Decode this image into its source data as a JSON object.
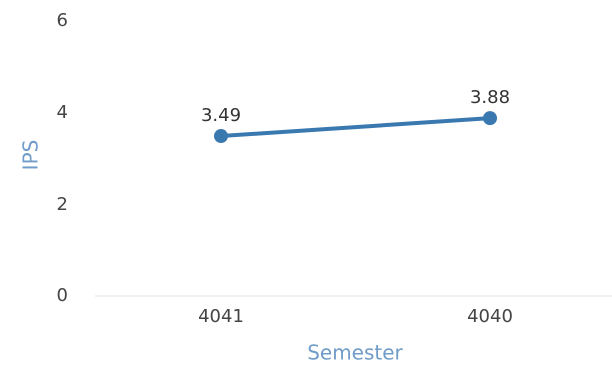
{
  "chart_data": {
    "type": "line",
    "categories": [
      "4041",
      "4040"
    ],
    "series": [
      {
        "values": [
          3.49,
          3.88
        ],
        "labels": [
          "3.49",
          "3.88"
        ]
      }
    ],
    "xlabel": "Semester",
    "ylabel": "IPS",
    "ylim": [
      0,
      6
    ],
    "yticks": [
      "0",
      "2",
      "4",
      "6"
    ],
    "grid": false,
    "colors": {
      "line": "#3a78b0",
      "axis_title": "#6f9cc8",
      "baseline": "#e3e3e3"
    }
  }
}
